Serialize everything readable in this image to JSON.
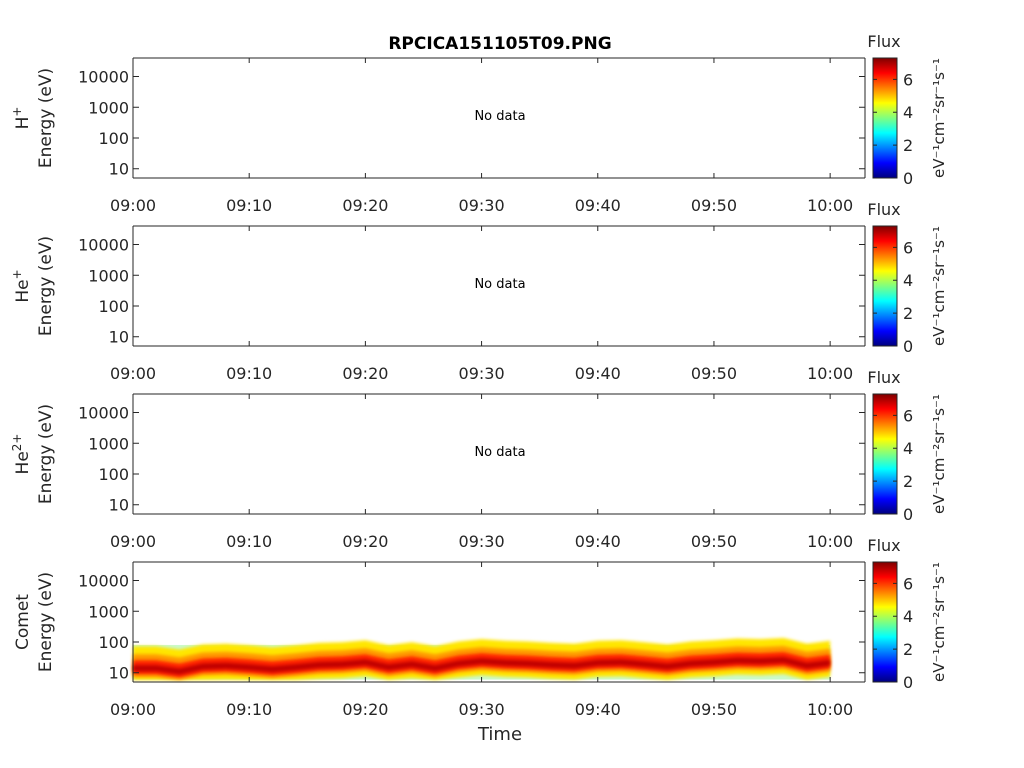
{
  "figure": {
    "title": "RPCICA151105T09.PNG",
    "xlabel": "Time",
    "colorbar_title": "Flux",
    "colorbar_unit": "eV⁻¹cm⁻²sr⁻¹s⁻¹",
    "no_data_text": "No data"
  },
  "chart_data": [
    {
      "type": "heatmap",
      "species": "H",
      "species_sup": "+",
      "ylabel": "Energy (eV)",
      "ylog": true,
      "ylim": [
        5,
        40000
      ],
      "yticks": [
        "10",
        "100",
        "1000",
        "10000"
      ],
      "xticks": [
        "09:00",
        "09:10",
        "09:20",
        "09:30",
        "09:40",
        "09:50",
        "10:00"
      ],
      "xlim": [
        "09:00",
        "10:03"
      ],
      "annotation": "No data",
      "colorbar": {
        "label": "Flux",
        "range": [
          0,
          7.3
        ],
        "ticks": [
          "0",
          "2",
          "4",
          "6"
        ],
        "colormap": "jet"
      },
      "series": []
    },
    {
      "type": "heatmap",
      "species": "He",
      "species_sup": "+",
      "ylabel": "Energy (eV)",
      "ylog": true,
      "ylim": [
        5,
        40000
      ],
      "yticks": [
        "10",
        "100",
        "1000",
        "10000"
      ],
      "xticks": [
        "09:00",
        "09:10",
        "09:20",
        "09:30",
        "09:40",
        "09:50",
        "10:00"
      ],
      "xlim": [
        "09:00",
        "10:03"
      ],
      "annotation": "No data",
      "colorbar": {
        "label": "Flux",
        "range": [
          0,
          7.3
        ],
        "ticks": [
          "0",
          "2",
          "4",
          "6"
        ],
        "colormap": "jet"
      },
      "series": []
    },
    {
      "type": "heatmap",
      "species": "He",
      "species_sup": "2+",
      "ylabel": "Energy (eV)",
      "ylog": true,
      "ylim": [
        5,
        40000
      ],
      "yticks": [
        "10",
        "100",
        "1000",
        "10000"
      ],
      "xticks": [
        "09:00",
        "09:10",
        "09:20",
        "09:30",
        "09:40",
        "09:50",
        "10:00"
      ],
      "xlim": [
        "09:00",
        "10:03"
      ],
      "annotation": "No data",
      "colorbar": {
        "label": "Flux",
        "range": [
          0,
          7.3
        ],
        "ticks": [
          "0",
          "2",
          "4",
          "6"
        ],
        "colormap": "jet"
      },
      "series": []
    },
    {
      "type": "heatmap",
      "species": "Comet",
      "species_sup": "",
      "ylabel": "Energy (eV)",
      "ylog": true,
      "ylim": [
        5,
        40000
      ],
      "yticks": [
        "10",
        "100",
        "1000",
        "10000"
      ],
      "xticks": [
        "09:00",
        "09:10",
        "09:20",
        "09:30",
        "09:40",
        "09:50",
        "10:00"
      ],
      "xlim": [
        "09:00",
        "10:03"
      ],
      "annotation": "",
      "colorbar": {
        "label": "Flux",
        "range": [
          0,
          7.3
        ],
        "ticks": [
          "0",
          "2",
          "4",
          "6"
        ],
        "colormap": "jet"
      },
      "data_window": {
        "start": "09:00",
        "end": "10:00",
        "energy_min": 6,
        "energy_max": 80
      },
      "peak_energy_trace": {
        "t": [
          "09:00",
          "09:02",
          "09:04",
          "09:06",
          "09:08",
          "09:10",
          "09:12",
          "09:14",
          "09:16",
          "09:18",
          "09:20",
          "09:22",
          "09:24",
          "09:26",
          "09:28",
          "09:30",
          "09:32",
          "09:34",
          "09:36",
          "09:38",
          "09:40",
          "09:42",
          "09:44",
          "09:46",
          "09:48",
          "09:50",
          "09:52",
          "09:54",
          "09:56",
          "09:58",
          "10:00"
        ],
        "energy_eV": [
          14,
          14,
          11,
          16,
          17,
          15,
          13,
          15,
          18,
          19,
          22,
          15,
          19,
          14,
          20,
          24,
          21,
          20,
          18,
          17,
          21,
          22,
          19,
          16,
          20,
          22,
          25,
          24,
          26,
          17,
          21
        ]
      }
    }
  ]
}
